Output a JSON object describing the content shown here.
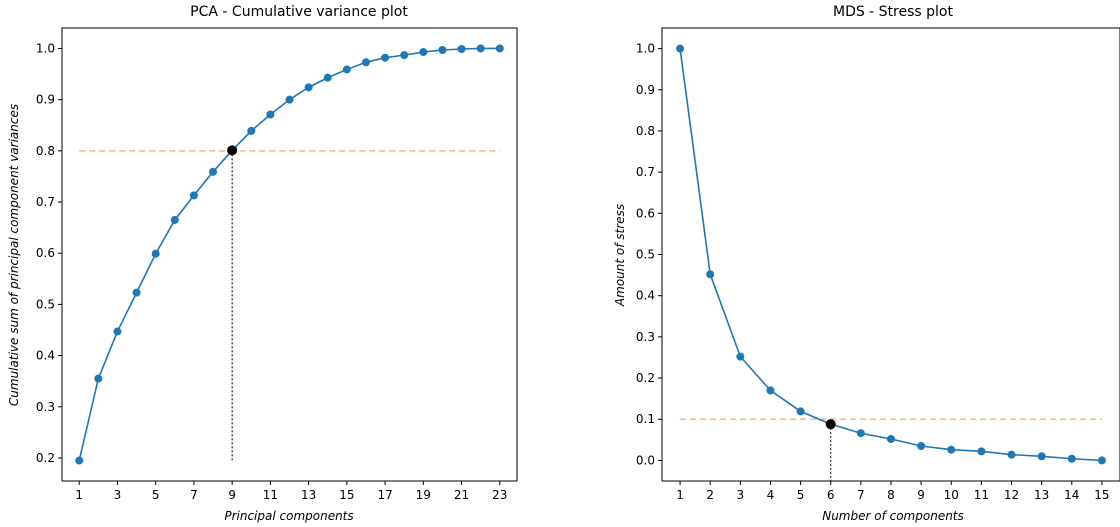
{
  "chart_data": [
    {
      "type": "line",
      "title": "PCA - Cumulative variance plot",
      "xlabel": "Principal components",
      "ylabel": "Cumulative sum of principal component variances",
      "x": [
        1,
        2,
        3,
        4,
        5,
        6,
        7,
        8,
        9,
        10,
        11,
        12,
        13,
        14,
        15,
        16,
        17,
        18,
        19,
        20,
        21,
        22,
        23
      ],
      "series": [
        {
          "values": [
            0.195,
            0.355,
            0.447,
            0.523,
            0.599,
            0.665,
            0.713,
            0.759,
            0.801,
            0.839,
            0.871,
            0.9,
            0.924,
            0.943,
            0.959,
            0.973,
            0.982,
            0.987,
            0.993,
            0.997,
            0.999,
            1.0,
            1.0
          ]
        }
      ],
      "xticks": [
        1,
        3,
        5,
        7,
        9,
        11,
        13,
        15,
        17,
        19,
        21,
        23
      ],
      "yticks": [
        0.2,
        0.3,
        0.4,
        0.5,
        0.6,
        0.7,
        0.8,
        0.9,
        1.0
      ],
      "xlim": [
        0.1,
        23.9
      ],
      "ylim": [
        0.155,
        1.04
      ],
      "threshold": 0.8,
      "highlight": {
        "x": 9,
        "y": 0.801
      },
      "line_color": "#1f77b4",
      "threshold_color": "#ffbb78",
      "highlight_color": "#000000",
      "grid": false
    },
    {
      "type": "line",
      "title": "MDS - Stress plot",
      "xlabel": "Number of components",
      "ylabel": "Amount of stress",
      "x": [
        1,
        2,
        3,
        4,
        5,
        6,
        7,
        8,
        9,
        10,
        11,
        12,
        13,
        14,
        15
      ],
      "series": [
        {
          "values": [
            1.0,
            0.452,
            0.252,
            0.17,
            0.119,
            0.088,
            0.066,
            0.052,
            0.035,
            0.026,
            0.022,
            0.014,
            0.01,
            0.004,
            0.0
          ]
        }
      ],
      "xticks": [
        1,
        2,
        3,
        4,
        5,
        6,
        7,
        8,
        9,
        10,
        11,
        12,
        13,
        14,
        15
      ],
      "yticks": [
        0.0,
        0.1,
        0.2,
        0.3,
        0.4,
        0.5,
        0.6,
        0.7,
        0.8,
        0.9,
        1.0
      ],
      "xlim": [
        0.4,
        15.6
      ],
      "ylim": [
        -0.05,
        1.05
      ],
      "threshold": 0.1,
      "highlight": {
        "x": 6,
        "y": 0.088
      },
      "line_color": "#1f77b4",
      "threshold_color": "#ffbb78",
      "highlight_color": "#000000",
      "grid": false
    }
  ]
}
